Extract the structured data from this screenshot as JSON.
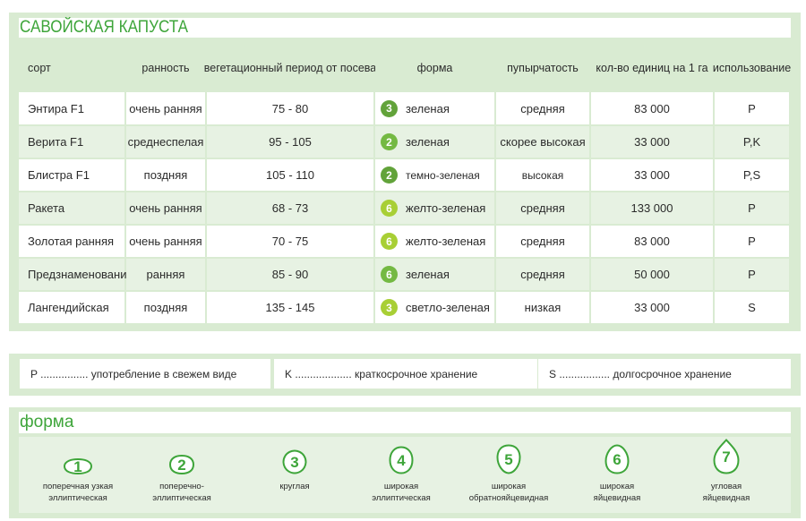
{
  "title": "САВОЙСКАЯ КАПУСТА",
  "headers": [
    "сорт",
    "ранность",
    "вегетационный период от посева",
    "форма",
    "пупырчатость",
    "кол-во единиц на 1 га",
    "использование"
  ],
  "rows": [
    {
      "sort": "Энтира F1",
      "ripeness": "очень ранняя",
      "period": "75 - 80",
      "shape_num": "3",
      "shape_color": "#62a33a",
      "color": "зеленая",
      "bubbling": "средняя",
      "units": "83 000",
      "usage": "P"
    },
    {
      "sort": "Верита F1",
      "ripeness": "среднеспелая",
      "period": "95 - 105",
      "shape_num": "2",
      "shape_color": "#74b943",
      "color": "зеленая",
      "bubbling": "скорее высокая",
      "units": "33 000",
      "usage": "P,K"
    },
    {
      "sort": "Блистра F1",
      "ripeness": "поздняя",
      "period": "105 - 110",
      "shape_num": "2",
      "shape_color": "#62a33a",
      "color": "темно-зеленая",
      "bubbling": "высокая",
      "units": "33 000",
      "usage": "P,S"
    },
    {
      "sort": "Ракета",
      "ripeness": "очень ранняя",
      "period": "68 - 73",
      "shape_num": "6",
      "shape_color": "#a8cf35",
      "color": "желто-зеленая",
      "bubbling": "средняя",
      "units": "133 000",
      "usage": "P"
    },
    {
      "sort": "Золотая ранняя",
      "ripeness": "очень ранняя",
      "period": "70 - 75",
      "shape_num": "6",
      "shape_color": "#a8cf35",
      "color": "желто-зеленая",
      "bubbling": "средняя",
      "units": "83 000",
      "usage": "P"
    },
    {
      "sort": "Предзнаменование",
      "ripeness": "ранняя",
      "period": "85 - 90",
      "shape_num": "6",
      "shape_color": "#74b943",
      "color": "зеленая",
      "bubbling": "средняя",
      "units": "50 000",
      "usage": "P"
    },
    {
      "sort": "Лангендийская",
      "ripeness": "поздняя",
      "period": "135 - 145",
      "shape_num": "3",
      "shape_color": "#a8cf35",
      "color": "светло-зеленая",
      "bubbling": "низкая",
      "units": "33 000",
      "usage": "S"
    }
  ],
  "legend": {
    "p": "P ................ употребление в свежем виде",
    "k": "K ................... краткосрочное хранение",
    "s": "S ................. долгосрочное хранение"
  },
  "shapes_title": "форма",
  "shapes": [
    {
      "num": "1",
      "line1": "поперечная узкая",
      "line2": "эллиптическая",
      "icon": "narrow-elliptic-shape-icon"
    },
    {
      "num": "2",
      "line1": "поперечно-",
      "line2": "эллиптическая",
      "icon": "elliptic-shape-icon"
    },
    {
      "num": "3",
      "line1": "круглая",
      "line2": "",
      "icon": "round-shape-icon"
    },
    {
      "num": "4",
      "line1": "широкая",
      "line2": "эллиптическая",
      "icon": "broad-elliptic-shape-icon"
    },
    {
      "num": "5",
      "line1": "широкая",
      "line2": "обратнояйцевидная",
      "icon": "obovate-shape-icon"
    },
    {
      "num": "6",
      "line1": "широкая",
      "line2": "яйцевидная",
      "icon": "ovate-shape-icon"
    },
    {
      "num": "7",
      "line1": "угловая",
      "line2": "яйцевидная",
      "icon": "angular-ovate-shape-icon"
    }
  ],
  "colors": {
    "accent": "#3ea53a",
    "panel": "#d9ebd2",
    "row_alt": "#e7f2e3"
  }
}
